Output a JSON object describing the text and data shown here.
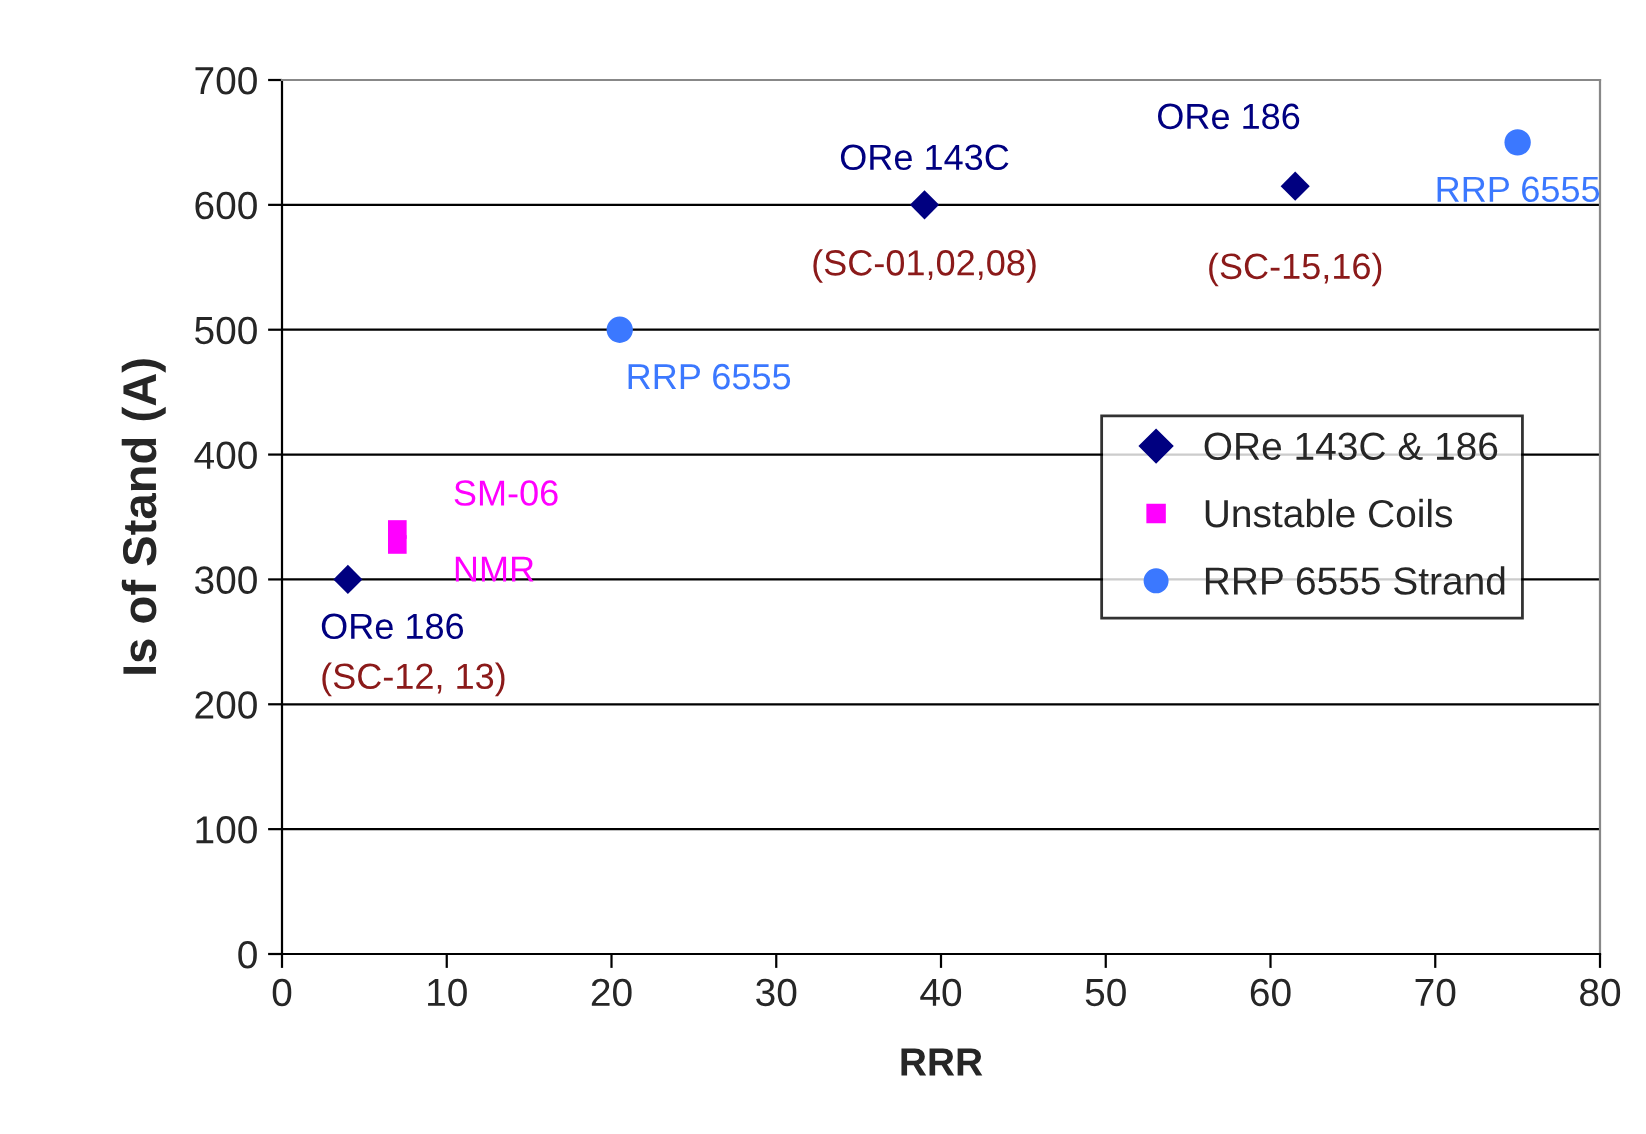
{
  "chart_data": {
    "type": "scatter",
    "xlabel": "RRR",
    "ylabel": "Is of Stand (A)",
    "series": [
      {
        "name": "ORe 143C & 186",
        "color": "#000080",
        "marker": "diamond",
        "x": [
          4,
          39,
          61.5
        ],
        "values": [
          300,
          600,
          615
        ]
      },
      {
        "name": "Unstable Coils",
        "color": "#ff00ff",
        "marker": "square",
        "x": [
          7,
          7
        ],
        "values": [
          328,
          340
        ]
      },
      {
        "name": "RRP 6555 Strand",
        "color": "#3b78ff",
        "marker": "circle",
        "x": [
          20.5,
          75
        ],
        "values": [
          500,
          650
        ]
      }
    ],
    "annotations": [
      {
        "text": "ORe 143C",
        "x": 39,
        "y": 600
      },
      {
        "text": "(SC-01,02,08)",
        "x": 39,
        "y": 600
      },
      {
        "text": "ORe 186",
        "x": 61.5,
        "y": 615
      },
      {
        "text": "RRP 6555",
        "x": 75,
        "y": 650
      },
      {
        "text": "(SC-15,16)",
        "x": 61.5,
        "y": 615
      },
      {
        "text": "RRP 6555",
        "x": 20.5,
        "y": 500
      },
      {
        "text": "SM-06",
        "x": 7,
        "y": 340
      },
      {
        "text": "NMR",
        "x": 7,
        "y": 328
      },
      {
        "text": "ORe 186",
        "x": 4,
        "y": 300
      },
      {
        "text": "(SC-12, 13)",
        "x": 4,
        "y": 300
      }
    ],
    "xlim": [
      0,
      80
    ],
    "xticks": [
      0,
      10,
      20,
      30,
      40,
      50,
      60,
      70,
      80
    ],
    "ylim": [
      0,
      700
    ],
    "yticks": [
      0,
      100,
      200,
      300,
      400,
      500,
      600,
      700
    ],
    "grid": "y",
    "legend": "right"
  }
}
